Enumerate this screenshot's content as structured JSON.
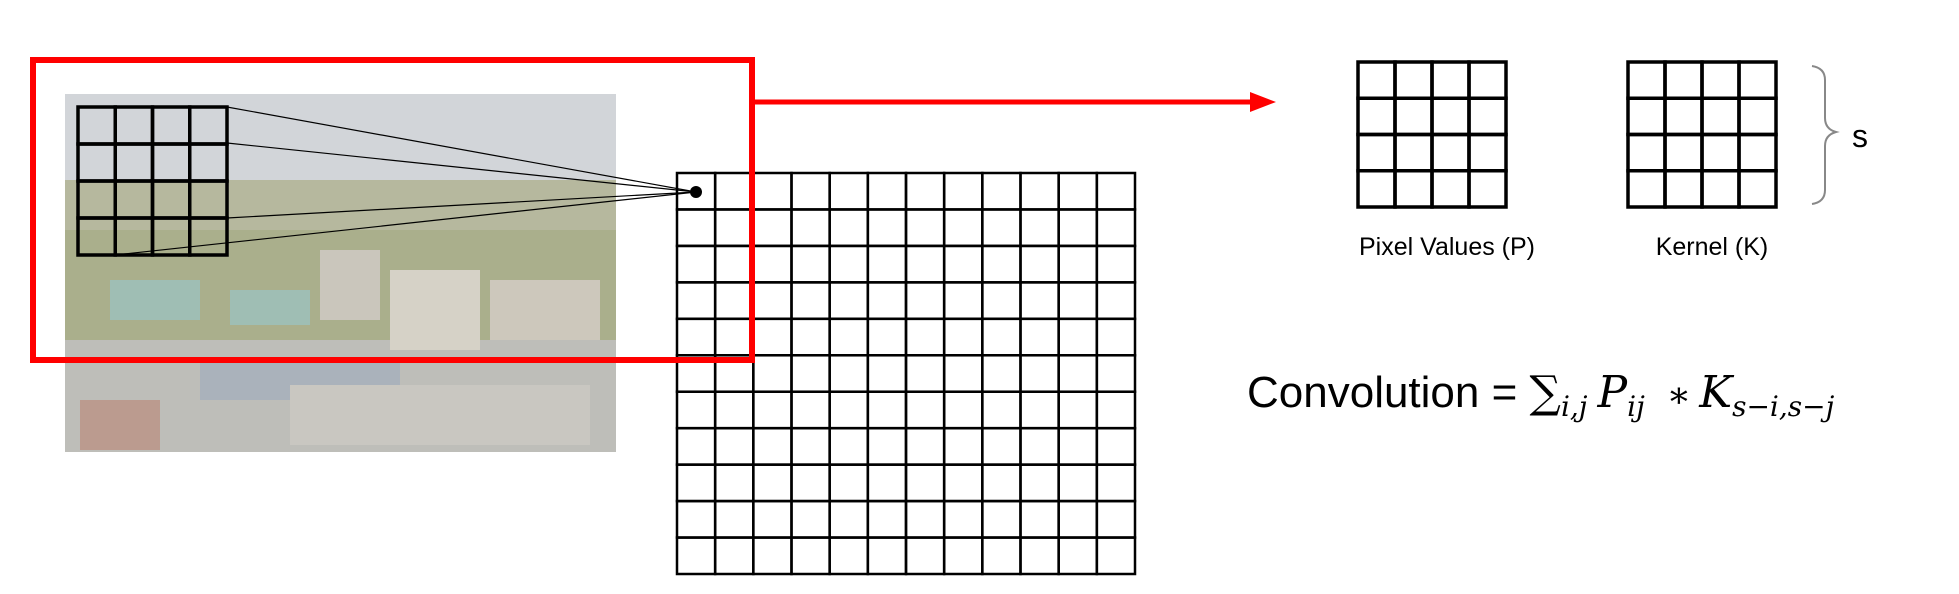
{
  "labels": {
    "pixel_values": "Pixel Values (P)",
    "kernel": "Kernel (K)",
    "size": "s"
  },
  "equation": {
    "lhs": "Convolution = ",
    "sum": "∑",
    "sum_sub": "i,j",
    "p": "P",
    "p_sub": "ij",
    "times": "∗",
    "k": "K",
    "k_sub": "s−i,s−j"
  },
  "colors": {
    "highlight": "#ff0000",
    "grid": "#000000",
    "sky": "#c3c7cc",
    "trees": "#8e9466",
    "buildings": "#b8b3a6",
    "roofs": "#7fa89b"
  },
  "grids": {
    "overlay": {
      "rows": 4,
      "cols": 4
    },
    "output": {
      "rows": 11,
      "cols": 12
    },
    "pixel_values": {
      "rows": 4,
      "cols": 4
    },
    "kernel": {
      "rows": 4,
      "cols": 4
    }
  },
  "icons": {
    "photo": "campus-aerial-photo",
    "arrow": "arrow-right-icon",
    "brace": "right-brace-icon",
    "dot": "output-pixel-dot"
  }
}
